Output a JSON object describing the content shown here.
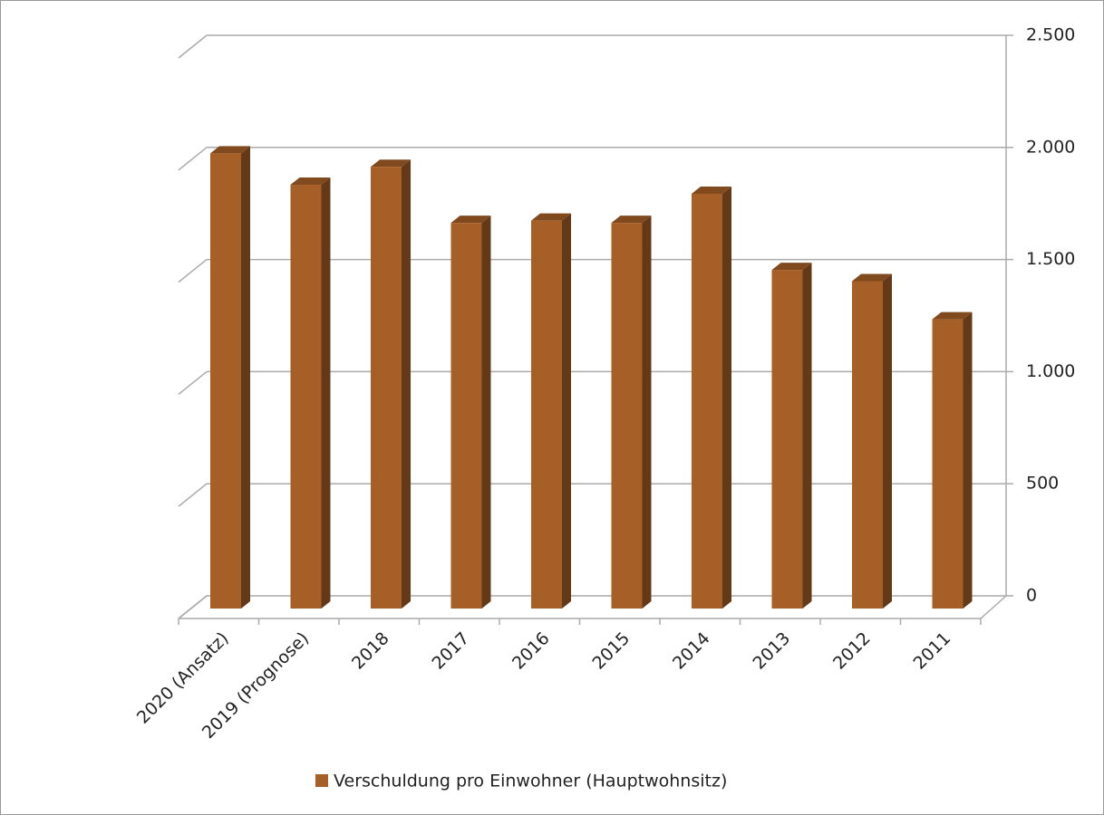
{
  "chart_data": {
    "type": "bar3d",
    "categories": [
      "2020 (Ansatz)",
      "2019 (Prognose)",
      "2018",
      "2017",
      "2016",
      "2015",
      "2014",
      "2013",
      "2012",
      "2011"
    ],
    "series": [
      {
        "name": "Verschuldung pro Einwohner (Hauptwohnsitz)",
        "color": "#a65f27",
        "values": [
          2030,
          1890,
          1970,
          1720,
          1730,
          1720,
          1850,
          1510,
          1460,
          1290
        ]
      }
    ],
    "ylim": [
      0,
      2500
    ],
    "yticks": [
      0,
      500,
      {
        "value": 1000,
        "label": "1.000"
      },
      {
        "value": 1500,
        "label": "1.500"
      },
      {
        "value": 2000,
        "label": "2.000"
      },
      {
        "value": 2500,
        "label": "2.500"
      }
    ],
    "grid": true,
    "legend": "bottom"
  }
}
